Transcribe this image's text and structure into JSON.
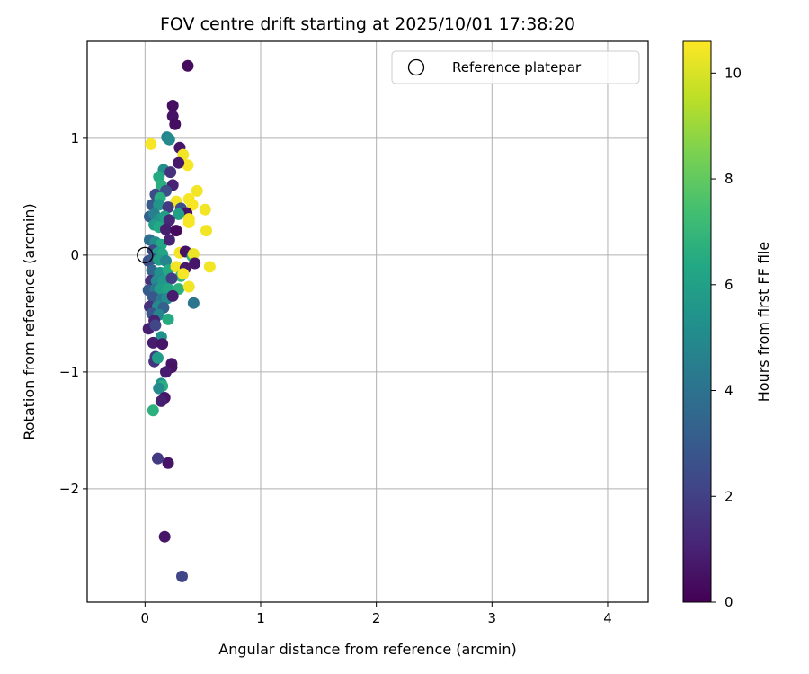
{
  "chart_data": {
    "type": "scatter",
    "title": "FOV centre drift starting at 2025/10/01 17:38:20",
    "xlabel": "Angular distance from reference (arcmin)",
    "ylabel": "Rotation from reference (arcmin)",
    "xlim": [
      -0.5,
      4.35
    ],
    "ylim": [
      -2.97,
      1.83
    ],
    "xticks": [
      0,
      1,
      2,
      3,
      4
    ],
    "xtick_labels": [
      "0",
      "1",
      "2",
      "3",
      "4"
    ],
    "yticks": [
      -2,
      -1,
      0,
      1
    ],
    "ytick_labels": [
      "−2",
      "−1",
      "0",
      "1"
    ],
    "grid": true,
    "legend": {
      "position": "top-right",
      "label": "Reference platepar"
    },
    "reference_point": {
      "x": 0,
      "y": 0
    },
    "colorbar": {
      "label": "Hours from first FF file",
      "range": [
        0,
        10.6
      ],
      "ticks": [
        0,
        2,
        4,
        6,
        8,
        10
      ],
      "tick_labels": [
        "0",
        "2",
        "4",
        "6",
        "8",
        "10"
      ],
      "colormap": "viridis"
    },
    "points": [
      [
        0.37,
        1.62,
        0.3
      ],
      [
        0.24,
        1.28,
        0.4
      ],
      [
        0.24,
        1.19,
        0.5
      ],
      [
        0.26,
        1.12,
        0.4
      ],
      [
        0.19,
        1.01,
        4.8
      ],
      [
        0.21,
        0.99,
        5.0
      ],
      [
        0.3,
        0.92,
        0.6
      ],
      [
        0.05,
        0.95,
        10.5
      ],
      [
        0.33,
        0.86,
        10.4
      ],
      [
        0.37,
        0.77,
        10.5
      ],
      [
        0.29,
        0.79,
        0.7
      ],
      [
        0.16,
        0.73,
        5.2
      ],
      [
        0.22,
        0.71,
        1.5
      ],
      [
        0.12,
        0.67,
        6.4
      ],
      [
        0.24,
        0.6,
        1.0
      ],
      [
        0.14,
        0.6,
        6.6
      ],
      [
        0.18,
        0.55,
        2.5
      ],
      [
        0.09,
        0.52,
        2.4
      ],
      [
        0.13,
        0.49,
        6.6
      ],
      [
        0.45,
        0.55,
        10.4
      ],
      [
        0.38,
        0.48,
        10.5
      ],
      [
        0.27,
        0.46,
        10.4
      ],
      [
        0.41,
        0.43,
        10.5
      ],
      [
        0.52,
        0.39,
        10.4
      ],
      [
        0.06,
        0.43,
        3.0
      ],
      [
        0.12,
        0.43,
        5.5
      ],
      [
        0.2,
        0.41,
        1.8
      ],
      [
        0.31,
        0.4,
        2.6
      ],
      [
        0.36,
        0.36,
        0.6
      ],
      [
        0.29,
        0.35,
        6.0
      ],
      [
        0.38,
        0.31,
        10.4
      ],
      [
        0.38,
        0.28,
        10.5
      ],
      [
        0.04,
        0.33,
        3.2
      ],
      [
        0.08,
        0.35,
        4.6
      ],
      [
        0.13,
        0.31,
        5.5
      ],
      [
        0.17,
        0.33,
        5.9
      ],
      [
        0.21,
        0.3,
        1.2
      ],
      [
        0.08,
        0.26,
        5.7
      ],
      [
        0.12,
        0.24,
        6.4
      ],
      [
        0.18,
        0.22,
        0.9
      ],
      [
        0.27,
        0.21,
        0.3
      ],
      [
        0.53,
        0.21,
        10.4
      ],
      [
        0.04,
        0.13,
        3.8
      ],
      [
        0.09,
        0.11,
        5.2
      ],
      [
        0.14,
        0.09,
        6.3
      ],
      [
        0.21,
        0.13,
        1.0
      ],
      [
        0.07,
        0.04,
        2.2
      ],
      [
        0.11,
        0.02,
        5.6
      ],
      [
        0.15,
        0.01,
        6.2
      ],
      [
        0.3,
        0.02,
        10.4
      ],
      [
        0.35,
        0.03,
        0.5
      ],
      [
        0.41,
        -0.01,
        6.8
      ],
      [
        0.42,
        0.01,
        10.3
      ],
      [
        0.03,
        -0.05,
        2.5
      ],
      [
        0.07,
        -0.03,
        3.0
      ],
      [
        0.12,
        -0.04,
        5.9
      ],
      [
        0.18,
        -0.05,
        4.8
      ],
      [
        0.43,
        -0.07,
        0.6
      ],
      [
        0.56,
        -0.1,
        10.4
      ],
      [
        0.06,
        -0.13,
        3.5
      ],
      [
        0.13,
        -0.15,
        5.3
      ],
      [
        0.2,
        -0.13,
        6.4
      ],
      [
        0.27,
        -0.1,
        10.4
      ],
      [
        0.35,
        -0.11,
        0.7
      ],
      [
        0.31,
        -0.18,
        6.9
      ],
      [
        0.33,
        -0.16,
        10.5
      ],
      [
        0.05,
        -0.22,
        1.5
      ],
      [
        0.1,
        -0.22,
        5.0
      ],
      [
        0.16,
        -0.22,
        5.6
      ],
      [
        0.23,
        -0.2,
        2.0
      ],
      [
        0.03,
        -0.3,
        3.0
      ],
      [
        0.09,
        -0.29,
        4.2
      ],
      [
        0.13,
        -0.29,
        5.8
      ],
      [
        0.2,
        -0.29,
        6.2
      ],
      [
        0.29,
        -0.29,
        6.7
      ],
      [
        0.38,
        -0.27,
        10.4
      ],
      [
        0.07,
        -0.36,
        2.9
      ],
      [
        0.14,
        -0.38,
        4.2
      ],
      [
        0.19,
        -0.37,
        5.1
      ],
      [
        0.24,
        -0.35,
        0.8
      ],
      [
        0.42,
        -0.41,
        4.1
      ],
      [
        0.04,
        -0.44,
        1.5
      ],
      [
        0.11,
        -0.44,
        5.0
      ],
      [
        0.16,
        -0.45,
        3.3
      ],
      [
        0.06,
        -0.5,
        2.8
      ],
      [
        0.12,
        -0.51,
        4.8
      ],
      [
        0.2,
        -0.55,
        6.5
      ],
      [
        0.08,
        -0.56,
        1.0
      ],
      [
        0.03,
        -0.63,
        0.9
      ],
      [
        0.09,
        -0.6,
        2.2
      ],
      [
        0.14,
        -0.7,
        5.3
      ],
      [
        0.07,
        -0.75,
        0.8
      ],
      [
        0.15,
        -0.76,
        0.6
      ],
      [
        0.09,
        -0.87,
        1.8
      ],
      [
        0.08,
        -0.91,
        1.6
      ],
      [
        0.11,
        -0.88,
        5.8
      ],
      [
        0.23,
        -0.93,
        0.7
      ],
      [
        0.23,
        -0.96,
        0.5
      ],
      [
        0.18,
        -1.0,
        0.8
      ],
      [
        0.14,
        -1.1,
        5.3
      ],
      [
        0.15,
        -1.12,
        6.6
      ],
      [
        0.12,
        -1.14,
        5.0
      ],
      [
        0.17,
        -1.22,
        0.6
      ],
      [
        0.14,
        -1.25,
        0.9
      ],
      [
        0.07,
        -1.33,
        6.7
      ],
      [
        0.11,
        -1.74,
        1.8
      ],
      [
        0.2,
        -1.78,
        0.6
      ],
      [
        0.17,
        -2.41,
        0.6
      ],
      [
        0.32,
        -2.75,
        2.2
      ]
    ]
  }
}
